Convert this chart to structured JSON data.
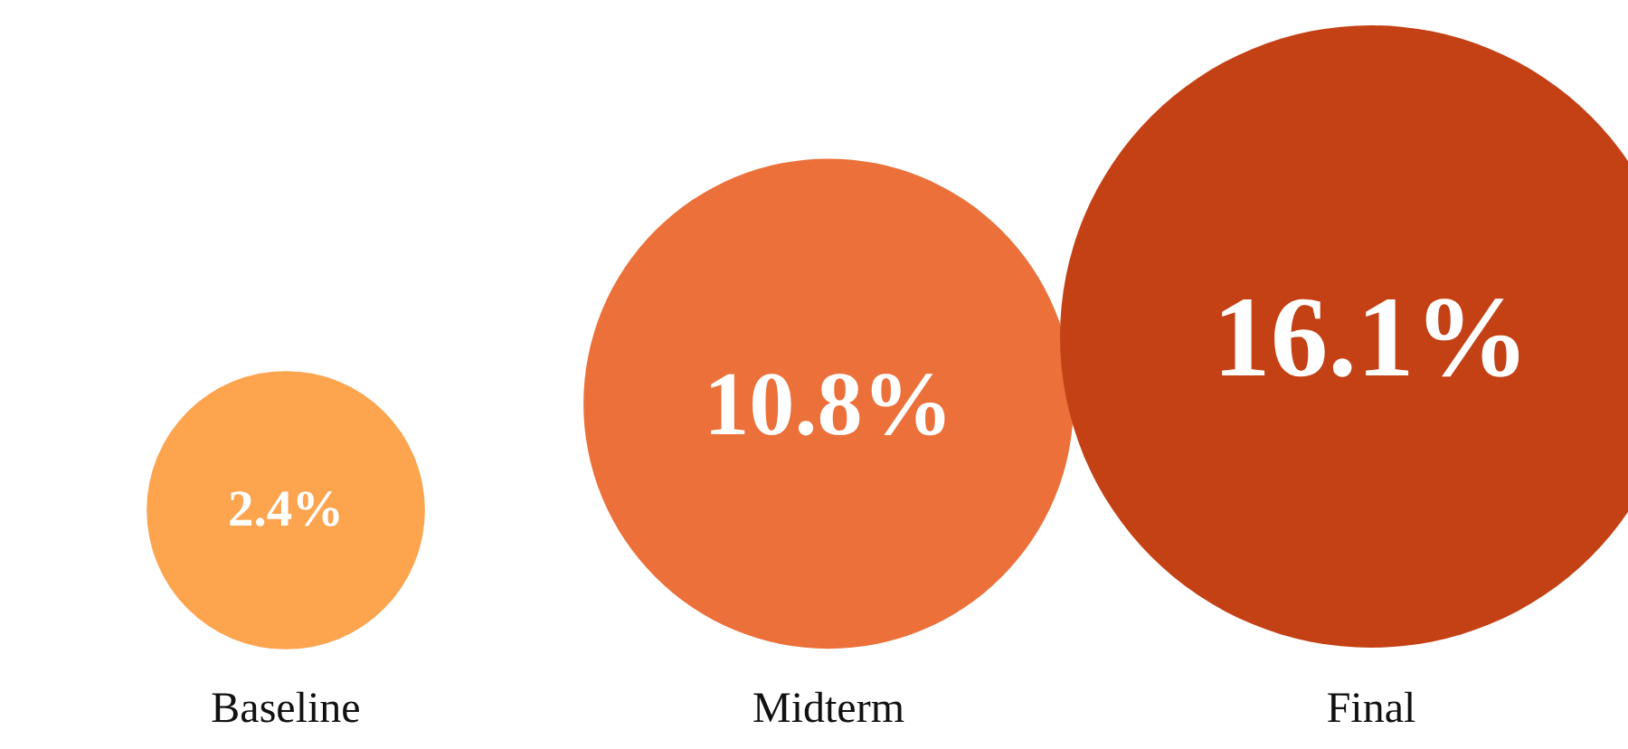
{
  "chart_data": {
    "type": "bubble",
    "categories": [
      "Baseline",
      "Midterm",
      "Final"
    ],
    "values": [
      2.4,
      10.8,
      16.1
    ],
    "sizes": [
      0.2,
      0.62,
      1
    ],
    "colors": [
      "#fda44f",
      "#ec703a",
      "#c44115"
    ],
    "value_labels": [
      "2.4%",
      "10.8%",
      "16.1%"
    ],
    "tick_labels": "x"
  }
}
